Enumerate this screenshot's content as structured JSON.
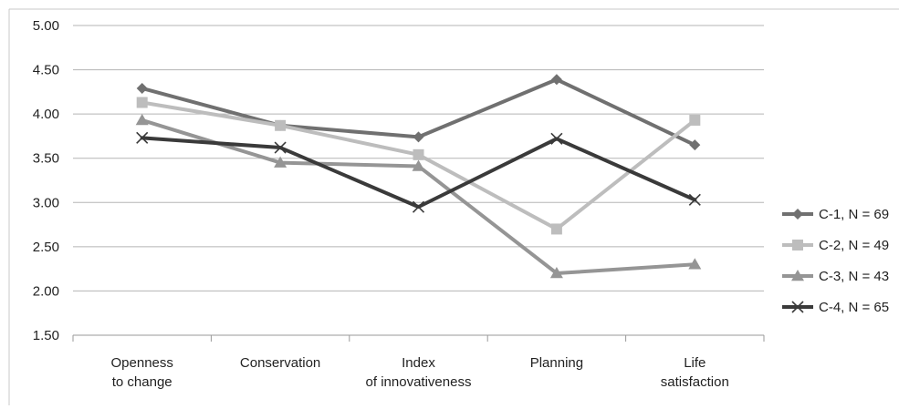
{
  "chart_data": {
    "type": "line",
    "title": "",
    "xlabel": "",
    "ylabel": "",
    "categories": [
      [
        "Openness",
        "to change"
      ],
      [
        "Conservation"
      ],
      [
        "Index",
        "of innovativeness"
      ],
      [
        "Planning"
      ],
      [
        "Life",
        "satisfaction"
      ]
    ],
    "ylim": [
      1.5,
      5.0
    ],
    "yticks": [
      "1.50",
      "2.00",
      "2.50",
      "3.00",
      "3.50",
      "4.00",
      "4.50",
      "5.00"
    ],
    "grid": true,
    "legend_position": "right",
    "series": [
      {
        "name": "C-1, N = 69",
        "marker": "diamond",
        "color": "#707070",
        "values": [
          4.29,
          3.87,
          3.74,
          4.39,
          3.65
        ]
      },
      {
        "name": "C-2, N = 49",
        "marker": "square",
        "color": "#bdbdbd",
        "values": [
          4.13,
          3.87,
          3.54,
          2.7,
          3.93
        ]
      },
      {
        "name": "C-3, N = 43",
        "marker": "triangle",
        "color": "#959595",
        "values": [
          3.93,
          3.45,
          3.41,
          2.2,
          2.3
        ]
      },
      {
        "name": "C-4, N = 65",
        "marker": "x",
        "color": "#3a3a3a",
        "values": [
          3.73,
          3.62,
          2.95,
          3.72,
          3.03
        ]
      }
    ]
  }
}
